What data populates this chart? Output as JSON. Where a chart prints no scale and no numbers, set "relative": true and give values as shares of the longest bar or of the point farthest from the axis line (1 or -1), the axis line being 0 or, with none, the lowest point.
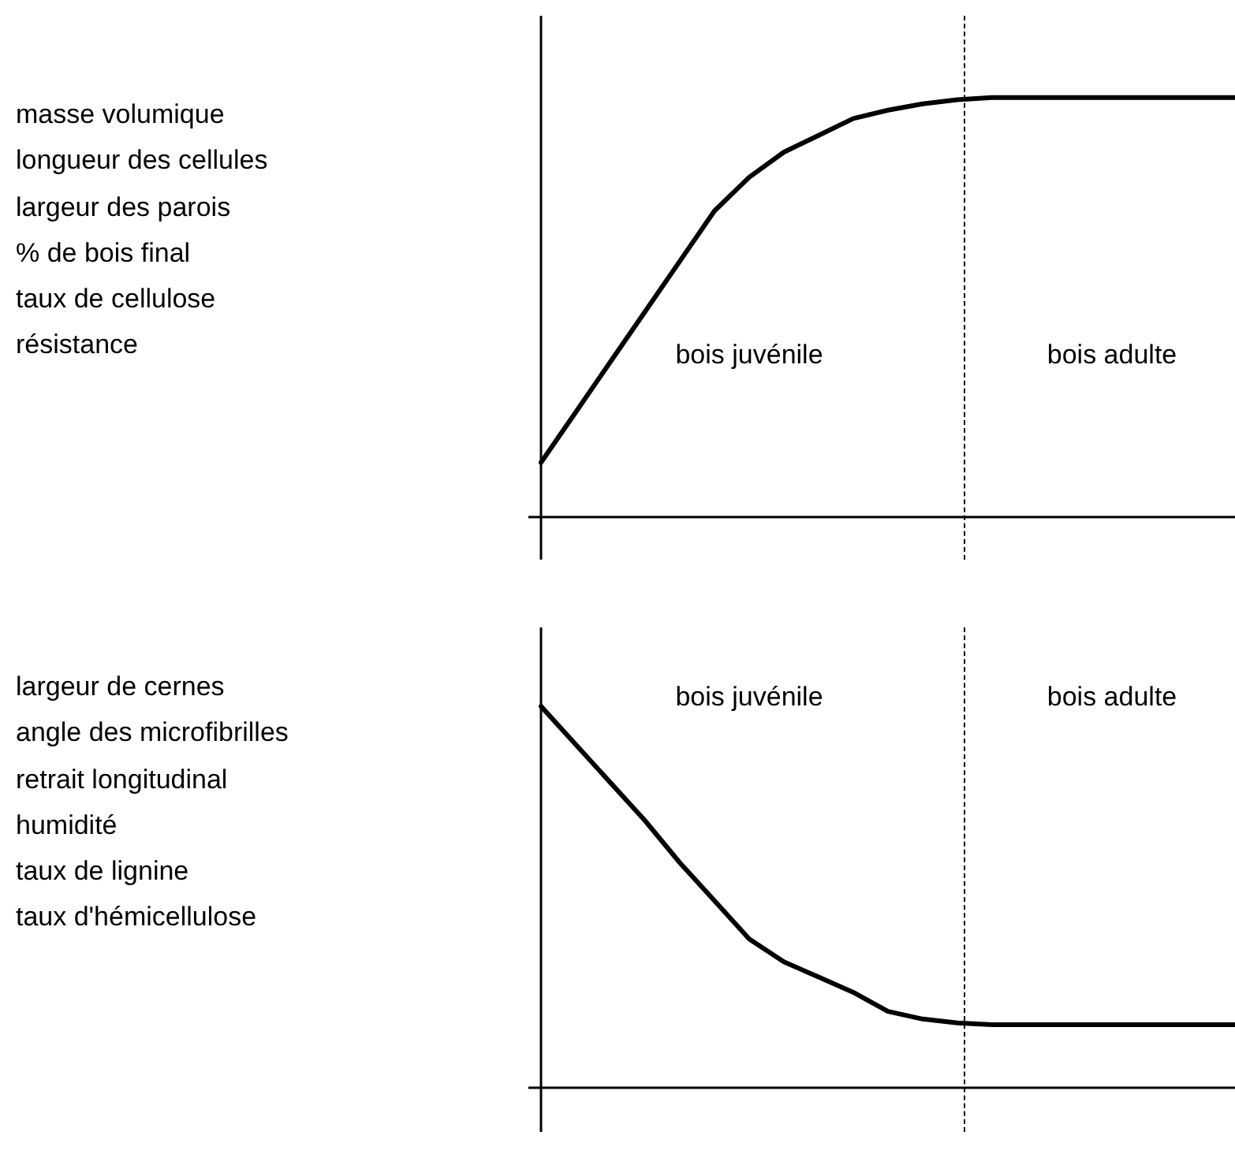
{
  "chart_data": [
    {
      "type": "line",
      "relative": true,
      "tick_labels": false,
      "marker": "none",
      "categories": [
        null,
        null,
        null,
        null,
        null,
        null,
        null,
        null,
        null,
        null,
        null,
        null,
        null,
        null,
        null,
        null,
        null,
        null,
        null,
        null,
        null
      ],
      "series": [
        {
          "color": "#000000",
          "values": [
            0.13,
            0.25,
            0.37,
            0.49,
            0.61,
            0.73,
            0.81,
            0.87,
            0.91,
            0.95,
            0.97,
            0.985,
            0.995,
            1,
            1,
            1,
            1,
            1,
            1,
            1,
            1
          ]
        }
      ],
      "annotations": [
        "masse volumique",
        "longueur des cellules",
        "largeur des parois",
        "% de bois final",
        "taux de cellulose",
        "résistance",
        "bois juvénile",
        "bois adulte"
      ]
    },
    {
      "type": "line",
      "relative": true,
      "tick_labels": false,
      "marker": "none",
      "categories": [
        null,
        null,
        null,
        null,
        null,
        null,
        null,
        null,
        null,
        null,
        null,
        null,
        null,
        null,
        null,
        null,
        null,
        null,
        null,
        null,
        null
      ],
      "series": [
        {
          "color": "#000000",
          "values": [
            1,
            0.9,
            0.8,
            0.7,
            0.59,
            0.49,
            0.39,
            0.33,
            0.29,
            0.25,
            0.2,
            0.18,
            0.17,
            0.165,
            0.165,
            0.165,
            0.165,
            0.165,
            0.165,
            0.165,
            0.165
          ]
        }
      ],
      "annotations": [
        "largeur de cernes",
        "angle des microfibrilles",
        "retrait longitudinal",
        "humidité",
        "taux de lignine",
        "taux d'hémicellulose",
        "bois juvénile",
        "bois adulte"
      ]
    }
  ]
}
